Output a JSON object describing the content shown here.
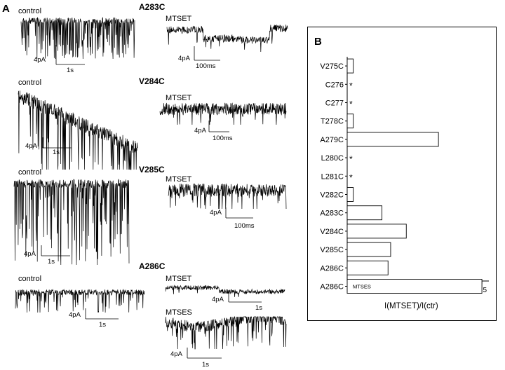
{
  "panel_a": {
    "letter": "A",
    "rows": [
      {
        "mutant": "A283C",
        "left_label": "control",
        "left_scale": {
          "y": "4pA",
          "x": "1s"
        },
        "right_label": "MTSET",
        "right_scale": {
          "y": "4pA",
          "x": "100ms"
        }
      },
      {
        "mutant": "V284C",
        "left_label": "control",
        "left_scale": {
          "y": "4pA",
          "x": "1s"
        },
        "right_label": "MTSET",
        "right_scale": {
          "y": "4pA",
          "x": "100ms"
        }
      },
      {
        "mutant": "V285C",
        "left_label": "control",
        "left_scale": {
          "y": "4pA",
          "x": "1s"
        },
        "right_label": "MTSET",
        "right_scale": {
          "y": "4pA",
          "x": "100ms"
        }
      },
      {
        "mutant": "A286C",
        "left_label": "control",
        "left_scale": {
          "y": "4pA",
          "x": "1s"
        },
        "right_label": "MTSET",
        "right_scale": {
          "y": "4pA",
          "x": "1s"
        },
        "extra_label": "MTSES",
        "extra_scale": {
          "y": "4pA",
          "x": "1s"
        }
      }
    ]
  },
  "panel_b": {
    "letter": "B",
    "xlabel": "I(MTSET)/I(ctr)",
    "ticks": [
      "0.0",
      "0.5",
      "1.0",
      "1.5"
    ],
    "bar_inner_label": "MTSES",
    "star": "*"
  },
  "chart_data": {
    "type": "bar",
    "orientation": "horizontal",
    "categories": [
      "V275C",
      "C276",
      "C277",
      "T278C",
      "A279C",
      "L280C",
      "L281C",
      "V282C",
      "A283C",
      "V284C",
      "V285C",
      "A286C",
      "A286C"
    ],
    "values": [
      0.02,
      null,
      null,
      0.02,
      1.0,
      null,
      null,
      0.02,
      0.35,
      0.63,
      0.45,
      0.42,
      1.5
    ],
    "not_measured_marker": "*",
    "annotations": [
      {
        "category_index": 12,
        "text": "MTSES"
      }
    ],
    "xlabel": "I(MTSET)/I(ctr)",
    "xlim": [
      -0.05,
      1.58
    ]
  }
}
